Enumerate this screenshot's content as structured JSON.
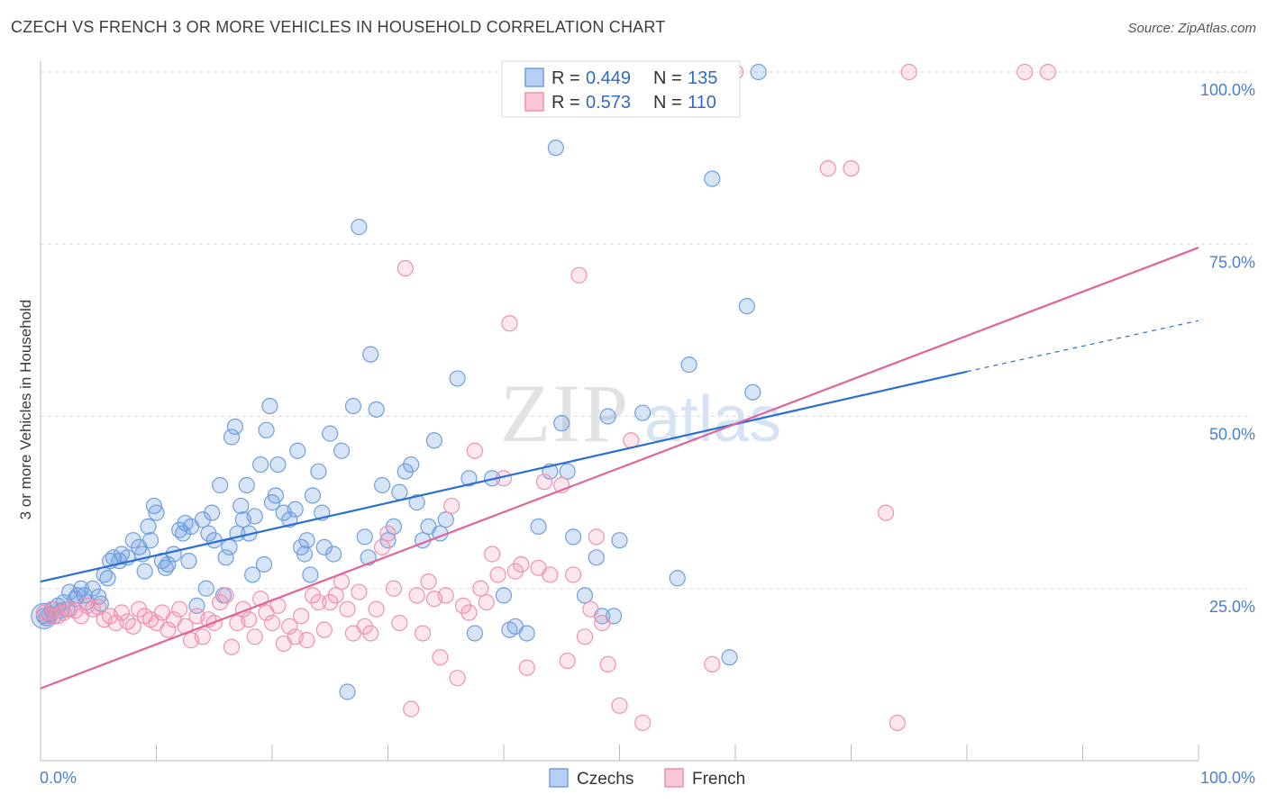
{
  "title": "CZECH VS FRENCH 3 OR MORE VEHICLES IN HOUSEHOLD CORRELATION CHART",
  "source": "Source: ZipAtlas.com",
  "watermark": "ZIPatlas",
  "colors": {
    "czechs": "#6f9fe0",
    "czechs_line": "#2b6fd1",
    "french": "#f091b0",
    "french_line": "#e0649a",
    "tick": "#4a7fd0"
  },
  "chart_data": {
    "type": "scatter",
    "title": "CZECH VS FRENCH 3 OR MORE VEHICLES IN HOUSEHOLD CORRELATION CHART",
    "xlabel": "",
    "ylabel": "3 or more Vehicles in Household",
    "xlim": [
      0,
      100
    ],
    "ylim": [
      0,
      100
    ],
    "x_tick_labels": [
      "0.0%",
      "100.0%"
    ],
    "y_tick_labels": [
      "25.0%",
      "50.0%",
      "75.0%",
      "100.0%"
    ],
    "y_ticks": [
      25,
      50,
      75,
      100
    ],
    "grid": true,
    "legend_stats": [
      {
        "r_label": "R =",
        "r_value": "0.449",
        "n_label": "N =",
        "n_value": "135"
      },
      {
        "r_label": "R =",
        "r_value": "0.573",
        "n_label": "N =",
        "n_value": "110"
      }
    ],
    "series": [
      {
        "name": "Czechs",
        "trend": {
          "x": [
            0,
            80
          ],
          "y": [
            26,
            56.5
          ],
          "x_dashed_end": 100,
          "y_dashed_end": 63.9
        },
        "points": [
          [
            0.3,
            21
          ],
          [
            0.5,
            20.7
          ],
          [
            0.8,
            21.2
          ],
          [
            1,
            22
          ],
          [
            1.2,
            21
          ],
          [
            1.5,
            22.5
          ],
          [
            1.8,
            21.8
          ],
          [
            2,
            23
          ],
          [
            2.3,
            22
          ],
          [
            2.5,
            24.5
          ],
          [
            3,
            23.5
          ],
          [
            3.2,
            24
          ],
          [
            3.5,
            25
          ],
          [
            3.8,
            24
          ],
          [
            4,
            23
          ],
          [
            4.5,
            25
          ],
          [
            5,
            23.8
          ],
          [
            5.2,
            22.8
          ],
          [
            5.5,
            27
          ],
          [
            5.8,
            26.5
          ],
          [
            6,
            29
          ],
          [
            6.3,
            29.5
          ],
          [
            6.8,
            29
          ],
          [
            7,
            30
          ],
          [
            7.5,
            29.5
          ],
          [
            8,
            32
          ],
          [
            8.5,
            31
          ],
          [
            8.8,
            30
          ],
          [
            9,
            27.5
          ],
          [
            9.3,
            34
          ],
          [
            9.5,
            32
          ],
          [
            9.8,
            37
          ],
          [
            10,
            36
          ],
          [
            10.5,
            29
          ],
          [
            10.8,
            28
          ],
          [
            11,
            28.5
          ],
          [
            11.5,
            30
          ],
          [
            12,
            33.5
          ],
          [
            12.3,
            33
          ],
          [
            12.5,
            34.5
          ],
          [
            12.8,
            29
          ],
          [
            13,
            34
          ],
          [
            13.5,
            22.5
          ],
          [
            14,
            35
          ],
          [
            14.3,
            25
          ],
          [
            14.5,
            33
          ],
          [
            14.8,
            36
          ],
          [
            15,
            32
          ],
          [
            15.5,
            40
          ],
          [
            15.8,
            24
          ],
          [
            16,
            29.5
          ],
          [
            16.3,
            31
          ],
          [
            16.5,
            47
          ],
          [
            16.8,
            48.5
          ],
          [
            17,
            33
          ],
          [
            17.3,
            37
          ],
          [
            17.5,
            35
          ],
          [
            17.8,
            40
          ],
          [
            18,
            33
          ],
          [
            18.3,
            27
          ],
          [
            18.5,
            35.5
          ],
          [
            19,
            43
          ],
          [
            19.3,
            28.5
          ],
          [
            19.5,
            48
          ],
          [
            19.8,
            51.5
          ],
          [
            20,
            37.5
          ],
          [
            20.3,
            38.5
          ],
          [
            20.5,
            43
          ],
          [
            21,
            36
          ],
          [
            21.5,
            35
          ],
          [
            22,
            36.5
          ],
          [
            22.2,
            45
          ],
          [
            22.5,
            31
          ],
          [
            22.8,
            30
          ],
          [
            23,
            32
          ],
          [
            23.3,
            27
          ],
          [
            23.5,
            38.5
          ],
          [
            24,
            42
          ],
          [
            24.3,
            36
          ],
          [
            24.5,
            31
          ],
          [
            25,
            47.5
          ],
          [
            25.3,
            30
          ],
          [
            26,
            45
          ],
          [
            26.5,
            10
          ],
          [
            27,
            51.5
          ],
          [
            27.5,
            77.5
          ],
          [
            28,
            32.5
          ],
          [
            28.3,
            29.5
          ],
          [
            28.5,
            59
          ],
          [
            29,
            51
          ],
          [
            29.5,
            40
          ],
          [
            30,
            32
          ],
          [
            30.5,
            34
          ],
          [
            31,
            39
          ],
          [
            31.5,
            42
          ],
          [
            32,
            43
          ],
          [
            32.5,
            37.5
          ],
          [
            33,
            32
          ],
          [
            33.5,
            34
          ],
          [
            34,
            46.5
          ],
          [
            34.5,
            33
          ],
          [
            35,
            35
          ],
          [
            36,
            55.5
          ],
          [
            37,
            41
          ],
          [
            37.5,
            18.5
          ],
          [
            39,
            41
          ],
          [
            40,
            24
          ],
          [
            40.5,
            19
          ],
          [
            41,
            19.5
          ],
          [
            42,
            18.5
          ],
          [
            43,
            34
          ],
          [
            44,
            42
          ],
          [
            44.5,
            89
          ],
          [
            45,
            49
          ],
          [
            45.5,
            42
          ],
          [
            46,
            32.5
          ],
          [
            47,
            24
          ],
          [
            48,
            29.5
          ],
          [
            48.5,
            21
          ],
          [
            49,
            50
          ],
          [
            49.5,
            21
          ],
          [
            50,
            32
          ],
          [
            52,
            50.5
          ],
          [
            55,
            26.5
          ],
          [
            56,
            57.5
          ],
          [
            58,
            84.5
          ],
          [
            59.5,
            15
          ],
          [
            61,
            66
          ],
          [
            61.5,
            53.5
          ],
          [
            62,
            100
          ]
        ]
      },
      {
        "name": "French",
        "trend": {
          "x": [
            0,
            100
          ],
          "y": [
            10.5,
            74.5
          ]
        },
        "points": [
          [
            0.3,
            21.5
          ],
          [
            0.8,
            21
          ],
          [
            1.2,
            22
          ],
          [
            1.5,
            21
          ],
          [
            2,
            21.5
          ],
          [
            2.5,
            22
          ],
          [
            3,
            21.8
          ],
          [
            3.5,
            21
          ],
          [
            4,
            22.5
          ],
          [
            4.5,
            22
          ],
          [
            5,
            22.3
          ],
          [
            5.5,
            20.5
          ],
          [
            6,
            21
          ],
          [
            6.5,
            20
          ],
          [
            7,
            21.5
          ],
          [
            7.5,
            20.2
          ],
          [
            8,
            19.5
          ],
          [
            8.5,
            22
          ],
          [
            9,
            21
          ],
          [
            9.5,
            20.5
          ],
          [
            10,
            20
          ],
          [
            10.5,
            21.5
          ],
          [
            11,
            19
          ],
          [
            11.5,
            20.5
          ],
          [
            12,
            22
          ],
          [
            12.5,
            19.5
          ],
          [
            13,
            17.5
          ],
          [
            13.5,
            21
          ],
          [
            14,
            18
          ],
          [
            14.5,
            20.5
          ],
          [
            15,
            20
          ],
          [
            15.5,
            23
          ],
          [
            16,
            24
          ],
          [
            16.5,
            16.5
          ],
          [
            17,
            20
          ],
          [
            17.5,
            22
          ],
          [
            18,
            20.5
          ],
          [
            18.5,
            18
          ],
          [
            19,
            23.5
          ],
          [
            19.5,
            21.5
          ],
          [
            20,
            20
          ],
          [
            20.5,
            22.5
          ],
          [
            21,
            17
          ],
          [
            21.5,
            19.5
          ],
          [
            22,
            18
          ],
          [
            22.5,
            21
          ],
          [
            23,
            17.5
          ],
          [
            23.5,
            24
          ],
          [
            24,
            23
          ],
          [
            24.5,
            19
          ],
          [
            25,
            23
          ],
          [
            25.5,
            24
          ],
          [
            26,
            26
          ],
          [
            26.5,
            22
          ],
          [
            27,
            18.5
          ],
          [
            27.5,
            24.5
          ],
          [
            28,
            19.5
          ],
          [
            28.5,
            18.5
          ],
          [
            29,
            22
          ],
          [
            29.5,
            31
          ],
          [
            30,
            33
          ],
          [
            30.5,
            25
          ],
          [
            31,
            20
          ],
          [
            31.5,
            71.5
          ],
          [
            32,
            7.5
          ],
          [
            32.5,
            24
          ],
          [
            33,
            18.5
          ],
          [
            33.5,
            26
          ],
          [
            34,
            23.5
          ],
          [
            34.5,
            15
          ],
          [
            35,
            24
          ],
          [
            35.5,
            37
          ],
          [
            36,
            12
          ],
          [
            36.5,
            22.5
          ],
          [
            37,
            21.5
          ],
          [
            37.5,
            45
          ],
          [
            38,
            25
          ],
          [
            38.5,
            23
          ],
          [
            39,
            30
          ],
          [
            39.5,
            27
          ],
          [
            40,
            41
          ],
          [
            40.5,
            63.5
          ],
          [
            41,
            27.5
          ],
          [
            41.5,
            28.5
          ],
          [
            42,
            13.5
          ],
          [
            43,
            28
          ],
          [
            43.5,
            40.5
          ],
          [
            44,
            27
          ],
          [
            45,
            40
          ],
          [
            45.5,
            14.5
          ],
          [
            46,
            27
          ],
          [
            46.5,
            70.5
          ],
          [
            47,
            18
          ],
          [
            47.5,
            22
          ],
          [
            48,
            32.5
          ],
          [
            48.5,
            20
          ],
          [
            49,
            14
          ],
          [
            50,
            8
          ],
          [
            51,
            46.5
          ],
          [
            52,
            5.5
          ],
          [
            58,
            14
          ],
          [
            60,
            100
          ],
          [
            68,
            86
          ],
          [
            70,
            86
          ],
          [
            73,
            36
          ],
          [
            74,
            5.5
          ],
          [
            75,
            100
          ],
          [
            85,
            100
          ],
          [
            87,
            100
          ]
        ]
      }
    ]
  }
}
